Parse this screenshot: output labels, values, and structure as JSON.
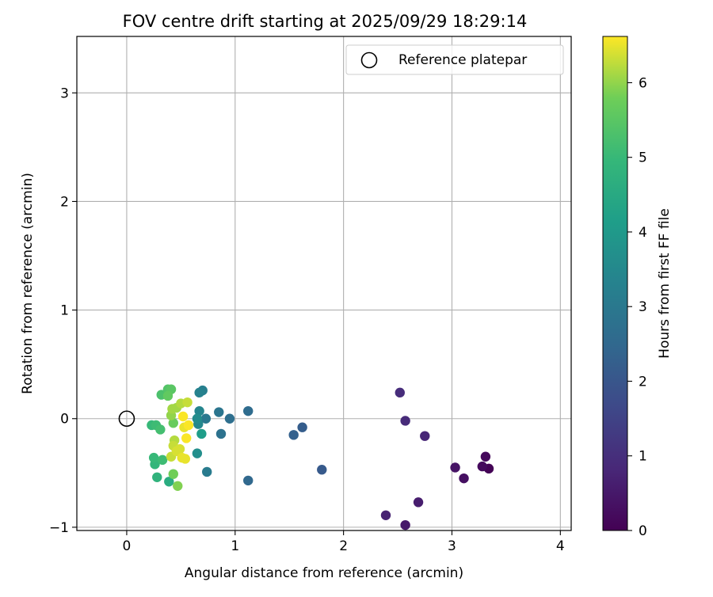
{
  "chart_data": {
    "type": "scatter",
    "title": "FOV centre drift starting at 2025/09/29 18:29:14",
    "xlabel": "Angular distance from reference (arcmin)",
    "ylabel": "Rotation from reference (arcmin)",
    "xlim": [
      -0.46,
      4.1
    ],
    "ylim": [
      -1.03,
      3.52
    ],
    "x_ticks": [
      0,
      1,
      2,
      3,
      4
    ],
    "y_ticks": [
      -1,
      0,
      1,
      2,
      3
    ],
    "grid": true,
    "legend": {
      "placement": "top-right",
      "entries": [
        {
          "label": "Reference platepar",
          "marker": "open-circle"
        }
      ]
    },
    "reference": {
      "x": 0,
      "y": 0
    },
    "colorbar": {
      "label": "Hours from first FF file",
      "min": 0,
      "max": 6.62,
      "ticks": [
        0,
        1,
        2,
        3,
        4,
        5,
        6
      ],
      "colormap": "viridis"
    },
    "points": [
      {
        "x": 3.34,
        "y": -0.46,
        "h": 0.05
      },
      {
        "x": 3.31,
        "y": -0.35,
        "h": 0.15
      },
      {
        "x": 3.28,
        "y": -0.44,
        "h": 0.2
      },
      {
        "x": 3.11,
        "y": -0.55,
        "h": 0.3
      },
      {
        "x": 3.03,
        "y": -0.45,
        "h": 0.4
      },
      {
        "x": 2.57,
        "y": -0.98,
        "h": 0.5
      },
      {
        "x": 2.69,
        "y": -0.77,
        "h": 0.6
      },
      {
        "x": 2.39,
        "y": -0.89,
        "h": 0.7
      },
      {
        "x": 2.75,
        "y": -0.16,
        "h": 0.8
      },
      {
        "x": 2.57,
        "y": -0.02,
        "h": 0.9
      },
      {
        "x": 2.52,
        "y": 0.24,
        "h": 0.95
      },
      {
        "x": 1.8,
        "y": -0.47,
        "h": 2.1
      },
      {
        "x": 1.62,
        "y": -0.08,
        "h": 2.2
      },
      {
        "x": 1.54,
        "y": -0.15,
        "h": 2.3
      },
      {
        "x": 1.12,
        "y": -0.57,
        "h": 2.5
      },
      {
        "x": 1.12,
        "y": 0.07,
        "h": 2.6
      },
      {
        "x": 0.95,
        "y": 0.0,
        "h": 2.7
      },
      {
        "x": 0.87,
        "y": -0.14,
        "h": 2.8
      },
      {
        "x": 0.85,
        "y": 0.06,
        "h": 2.9
      },
      {
        "x": 0.74,
        "y": -0.49,
        "h": 3.1
      },
      {
        "x": 0.73,
        "y": 0.0,
        "h": 3.0
      },
      {
        "x": 0.7,
        "y": 0.26,
        "h": 3.2
      },
      {
        "x": 0.67,
        "y": 0.24,
        "h": 3.3
      },
      {
        "x": 0.67,
        "y": 0.07,
        "h": 3.4
      },
      {
        "x": 0.66,
        "y": -0.05,
        "h": 3.5
      },
      {
        "x": 0.65,
        "y": 0.0,
        "h": 3.6
      },
      {
        "x": 0.65,
        "y": -0.32,
        "h": 3.7
      },
      {
        "x": 0.69,
        "y": -0.14,
        "h": 4.1
      },
      {
        "x": 0.39,
        "y": -0.58,
        "h": 4.6
      },
      {
        "x": 0.28,
        "y": -0.54,
        "h": 4.8
      },
      {
        "x": 0.26,
        "y": -0.42,
        "h": 4.9
      },
      {
        "x": 0.25,
        "y": -0.36,
        "h": 5.0
      },
      {
        "x": 0.33,
        "y": -0.38,
        "h": 5.1
      },
      {
        "x": 0.23,
        "y": -0.06,
        "h": 5.0
      },
      {
        "x": 0.27,
        "y": -0.06,
        "h": 5.1
      },
      {
        "x": 0.31,
        "y": -0.1,
        "h": 5.2
      },
      {
        "x": 0.32,
        "y": 0.22,
        "h": 5.3
      },
      {
        "x": 0.38,
        "y": 0.27,
        "h": 5.4
      },
      {
        "x": 0.41,
        "y": 0.27,
        "h": 5.5
      },
      {
        "x": 0.38,
        "y": 0.21,
        "h": 5.6
      },
      {
        "x": 0.43,
        "y": -0.04,
        "h": 5.7
      },
      {
        "x": 0.43,
        "y": -0.51,
        "h": 5.8
      },
      {
        "x": 0.47,
        "y": -0.62,
        "h": 5.9
      },
      {
        "x": 0.41,
        "y": 0.03,
        "h": 6.0
      },
      {
        "x": 0.42,
        "y": 0.09,
        "h": 6.1
      },
      {
        "x": 0.46,
        "y": 0.1,
        "h": 6.1
      },
      {
        "x": 0.5,
        "y": 0.14,
        "h": 6.2
      },
      {
        "x": 0.56,
        "y": 0.15,
        "h": 6.3
      },
      {
        "x": 0.44,
        "y": -0.2,
        "h": 6.2
      },
      {
        "x": 0.43,
        "y": -0.25,
        "h": 6.3
      },
      {
        "x": 0.41,
        "y": -0.35,
        "h": 6.3
      },
      {
        "x": 0.46,
        "y": -0.3,
        "h": 6.4
      },
      {
        "x": 0.49,
        "y": -0.28,
        "h": 6.4
      },
      {
        "x": 0.51,
        "y": -0.36,
        "h": 6.5
      },
      {
        "x": 0.54,
        "y": -0.37,
        "h": 6.5
      },
      {
        "x": 0.53,
        "y": -0.08,
        "h": 6.5
      },
      {
        "x": 0.57,
        "y": -0.06,
        "h": 6.6
      },
      {
        "x": 0.52,
        "y": 0.02,
        "h": 6.6
      },
      {
        "x": 0.55,
        "y": -0.18,
        "h": 6.6
      }
    ]
  }
}
